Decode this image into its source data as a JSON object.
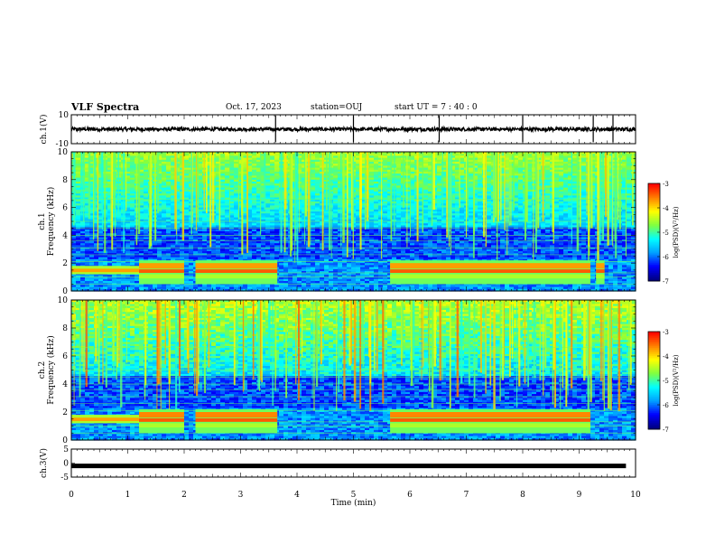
{
  "header": {
    "title": "VLF Spectra",
    "date": "Oct. 17, 2023",
    "station": "station=OUJ",
    "start_time": "start  UT =   7 : 40 : 0"
  },
  "colors": {
    "colormap": [
      "#000080",
      "#0000ff",
      "#00a0ff",
      "#00ffff",
      "#80ff40",
      "#ffff00",
      "#ff8000",
      "#ff0000",
      "#ffffff"
    ]
  },
  "chart_data": [
    {
      "type": "line",
      "panel": "ch1-waveform",
      "ylabel": "ch.1(V)",
      "ylim": [
        -10,
        10
      ],
      "y_ticks": [
        "10",
        "-10"
      ],
      "xlim": [
        0,
        10
      ],
      "baseline": 0,
      "spike_times_min": [
        3.62,
        5.0,
        6.52,
        8.0,
        9.6,
        9.25
      ]
    },
    {
      "type": "heatmap",
      "panel": "ch1-spectrogram",
      "ylabel_lines": [
        "ch.1",
        "Frequency (kHz)"
      ],
      "ylim": [
        0,
        10
      ],
      "y_ticks": [
        "0",
        "2",
        "4",
        "6",
        "8",
        "10"
      ],
      "xlim": [
        0,
        10
      ],
      "colorbar": {
        "label": "log(PSD)(V²/Hz)",
        "ticks": [
          "-3",
          "-4",
          "-5",
          "-6",
          "-7"
        ],
        "range": [
          -7,
          -3
        ]
      },
      "band_segments_min": [
        [
          1.2,
          2.0
        ],
        [
          2.2,
          3.65
        ],
        [
          5.65,
          7.8
        ],
        [
          7.8,
          9.2
        ],
        [
          9.3,
          9.45
        ]
      ]
    },
    {
      "type": "heatmap",
      "panel": "ch2-spectrogram",
      "ylabel_lines": [
        "ch.2",
        "Frequency (kHz)"
      ],
      "ylim": [
        0,
        10
      ],
      "y_ticks": [
        "0",
        "2",
        "4",
        "6",
        "8",
        "10"
      ],
      "xlim": [
        0,
        10
      ],
      "colorbar": {
        "label": "log(PSD)(V²/Hz)",
        "ticks": [
          "-3",
          "-4",
          "-5",
          "-6",
          "-7"
        ],
        "range": [
          -7,
          -3
        ]
      },
      "band_segments_min": [
        [
          1.2,
          2.0
        ],
        [
          2.2,
          3.65
        ],
        [
          5.65,
          7.8
        ],
        [
          7.8,
          9.2
        ]
      ]
    },
    {
      "type": "line",
      "panel": "ch3-waveform",
      "ylabel": "ch.3(V)",
      "ylim": [
        -5,
        5
      ],
      "y_ticks": [
        "5",
        "0",
        "-5"
      ],
      "xlim": [
        0,
        10
      ],
      "constant_value": -1
    },
    {
      "type": "axis",
      "panel": "time-axis",
      "xlabel": "Time (min)",
      "x_ticks": [
        "0",
        "1",
        "2",
        "3",
        "4",
        "5",
        "6",
        "7",
        "8",
        "9",
        "10"
      ],
      "xlim": [
        0,
        10
      ]
    }
  ]
}
